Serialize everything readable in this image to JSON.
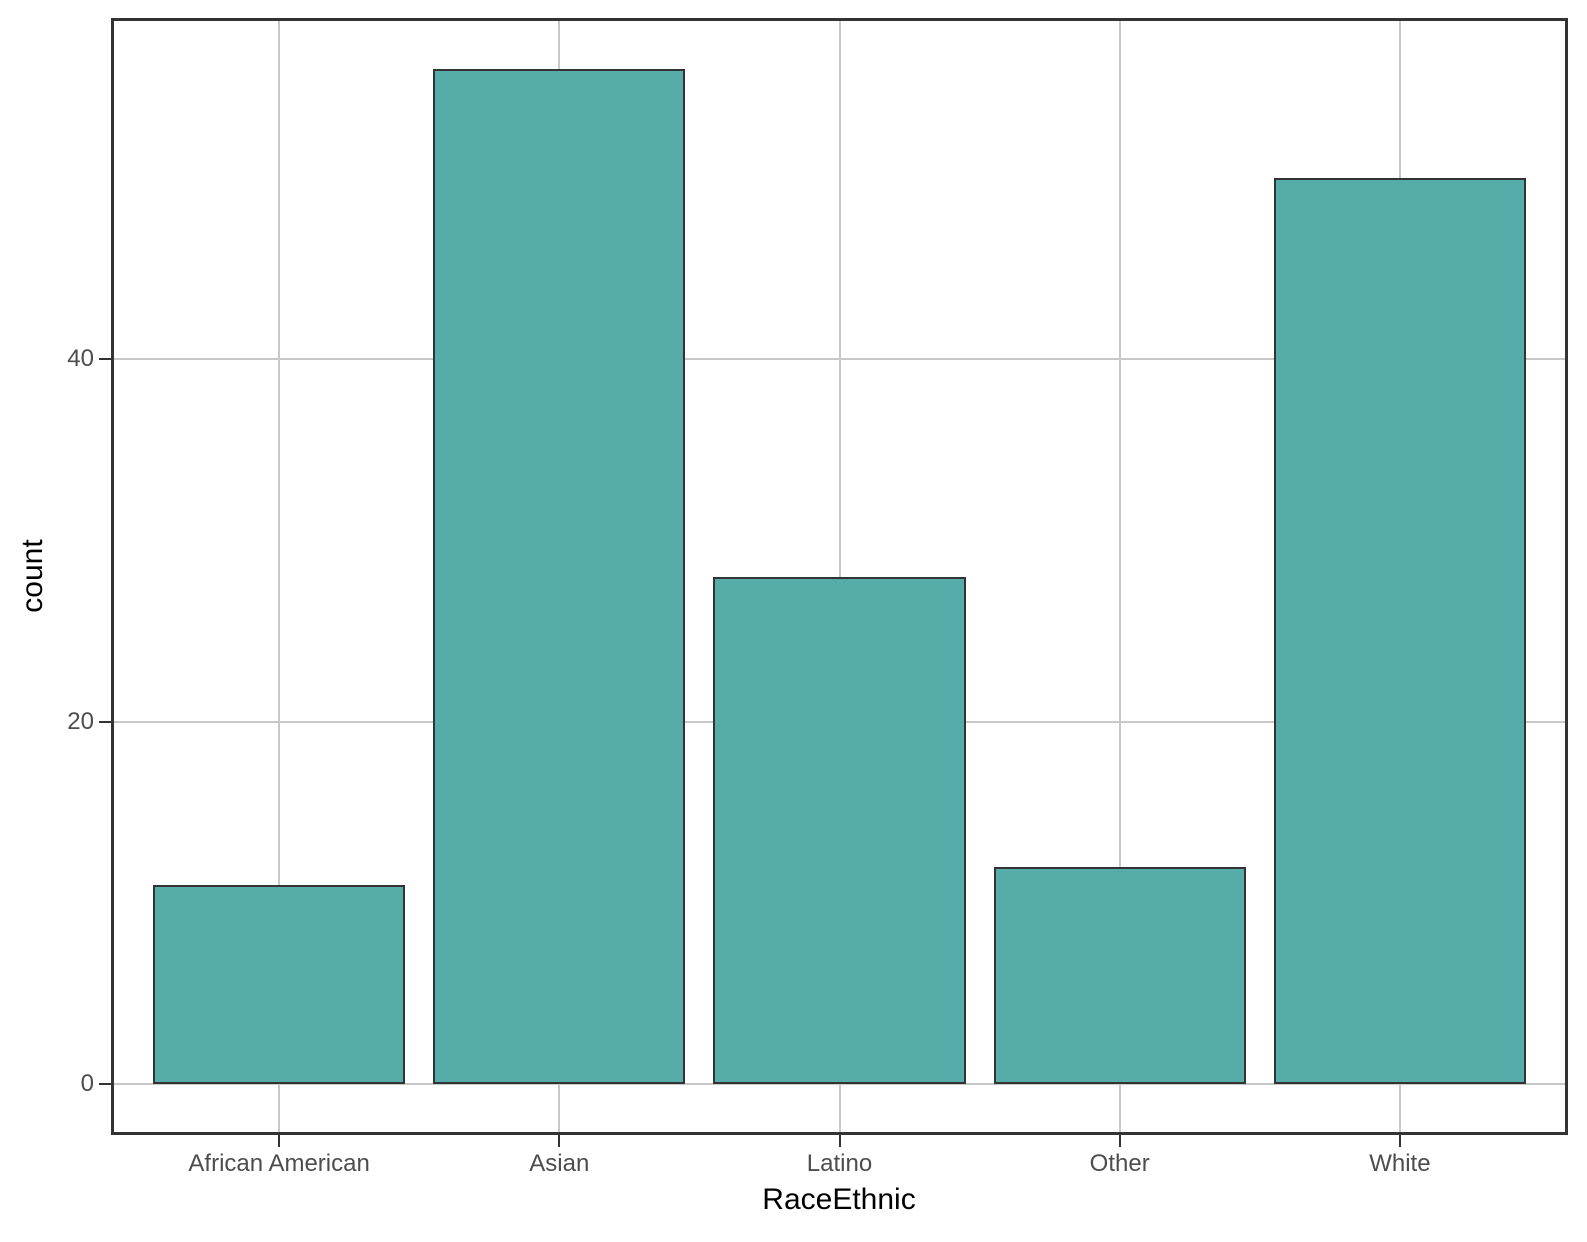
{
  "chart_data": {
    "type": "bar",
    "title": "",
    "xlabel": "RaceEthnic",
    "ylabel": "count",
    "categories": [
      "African American",
      "Asian",
      "Latino",
      "Other",
      "White"
    ],
    "values": [
      11,
      56,
      28,
      12,
      50
    ],
    "ylim": [
      -2.8,
      58.8
    ],
    "yticks": [
      0,
      20,
      40
    ],
    "grid": true,
    "legend": "none",
    "bar_width_units": 0.9,
    "discrete_expand": 0.6,
    "colors": {
      "bar_fill": "#55ACA9",
      "bar_stroke": "#333333",
      "gridline": "#C8C8C8",
      "tick_mark": "#333333",
      "tick_label": "#4D4D4D",
      "axis_title": "#000000",
      "panel_border": "#333333",
      "background": "#FFFFFF"
    }
  }
}
